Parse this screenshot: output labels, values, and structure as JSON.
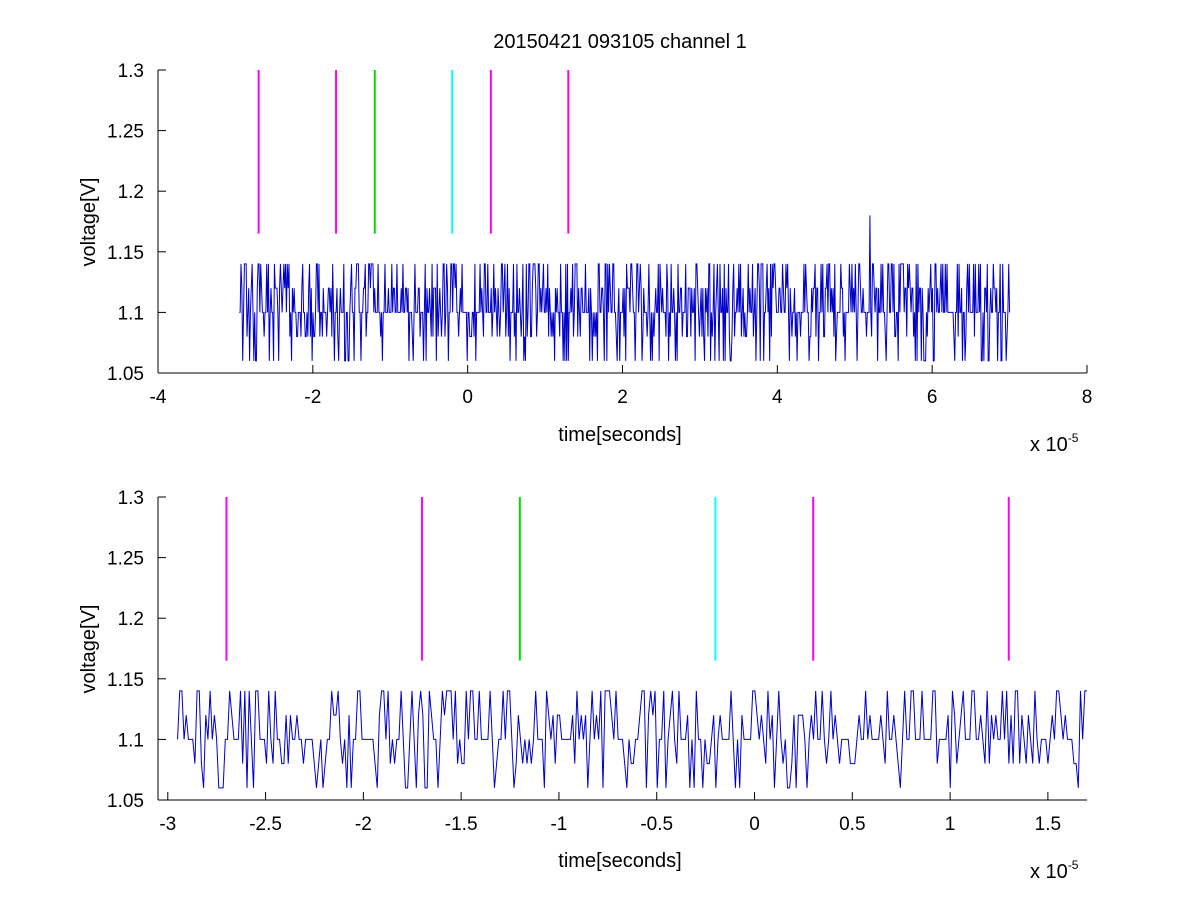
{
  "figure": {
    "title": "20150421 093105 channel 1"
  },
  "chart_data": [
    {
      "type": "line",
      "title": "20150421 093105 channel 1",
      "xlabel": "time[seconds]",
      "ylabel": "voltage[V]",
      "x_multiplier": "x 10",
      "x_multiplier_exp": "-5",
      "xlim": [
        -4,
        8
      ],
      "ylim": [
        1.05,
        1.3
      ],
      "xticks": [
        -4,
        -2,
        0,
        2,
        4,
        6,
        8
      ],
      "xtick_labels": [
        "-4",
        "-2",
        "0",
        "2",
        "4",
        "6",
        "8"
      ],
      "yticks": [
        1.05,
        1.1,
        1.15,
        1.2,
        1.25,
        1.3
      ],
      "ytick_labels": [
        "1.05",
        "1.1",
        "1.15",
        "1.2",
        "1.25",
        "1.3"
      ],
      "grid": false,
      "series": [
        {
          "color": "#0000cc",
          "x_range": [
            -2.95,
            7.0
          ],
          "levels": [
            1.06,
            1.08,
            1.1,
            1.12,
            1.14
          ],
          "baseline": 1.1,
          "spike": {
            "x": 5.2,
            "y": 1.18
          },
          "values_note": "noisy signal around 1.1 V"
        }
      ],
      "markers": [
        {
          "x": -2.7,
          "color": "#ff00ff",
          "y_range": [
            1.165,
            1.3
          ]
        },
        {
          "x": -1.7,
          "color": "#ff00ff",
          "y_range": [
            1.165,
            1.3
          ]
        },
        {
          "x": -1.2,
          "color": "#00dd00",
          "y_range": [
            1.165,
            1.3
          ]
        },
        {
          "x": -0.2,
          "color": "#00ffff",
          "y_range": [
            1.165,
            1.3
          ]
        },
        {
          "x": 0.3,
          "color": "#ff00ff",
          "y_range": [
            1.165,
            1.3
          ]
        },
        {
          "x": 1.3,
          "color": "#ff00ff",
          "y_range": [
            1.165,
            1.3
          ]
        }
      ]
    },
    {
      "type": "line",
      "title": "",
      "xlabel": "time[seconds]",
      "ylabel": "voltage[V]",
      "x_multiplier": "x 10",
      "x_multiplier_exp": "-5",
      "xlim": [
        -3.05,
        1.7
      ],
      "ylim": [
        1.05,
        1.3
      ],
      "xticks": [
        -3,
        -2.5,
        -2,
        -1.5,
        -1,
        -0.5,
        0,
        0.5,
        1,
        1.5
      ],
      "xtick_labels": [
        "-3",
        "-2.5",
        "-2",
        "-1.5",
        "-1",
        "-0.5",
        "0",
        "0.5",
        "1",
        "1.5"
      ],
      "yticks": [
        1.05,
        1.1,
        1.15,
        1.2,
        1.25,
        1.3
      ],
      "ytick_labels": [
        "1.05",
        "1.1",
        "1.15",
        "1.2",
        "1.25",
        "1.3"
      ],
      "grid": false,
      "series": [
        {
          "color": "#0000cc",
          "x_range": [
            -2.95,
            1.7
          ],
          "levels": [
            1.06,
            1.08,
            1.1,
            1.12,
            1.14
          ],
          "baseline": 1.1,
          "values_note": "noisy signal around 1.1 V (zoomed)"
        }
      ],
      "markers": [
        {
          "x": -2.7,
          "color": "#ff00ff",
          "y_range": [
            1.165,
            1.3
          ]
        },
        {
          "x": -1.7,
          "color": "#ff00ff",
          "y_range": [
            1.165,
            1.3
          ]
        },
        {
          "x": -1.2,
          "color": "#00dd00",
          "y_range": [
            1.165,
            1.3
          ]
        },
        {
          "x": -0.2,
          "color": "#00ffff",
          "y_range": [
            1.165,
            1.3
          ]
        },
        {
          "x": 0.3,
          "color": "#ff00ff",
          "y_range": [
            1.165,
            1.3
          ]
        },
        {
          "x": 1.3,
          "color": "#ff00ff",
          "y_range": [
            1.165,
            1.3
          ]
        }
      ]
    }
  ]
}
